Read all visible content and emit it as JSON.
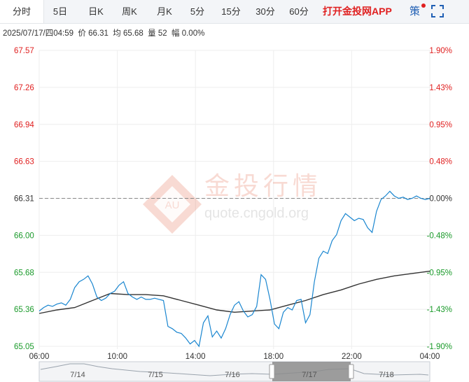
{
  "toolbar": {
    "tabs": [
      "分时",
      "5日",
      "日K",
      "周K",
      "月K",
      "5分",
      "15分",
      "30分",
      "60分"
    ],
    "active_tab": "分时",
    "promo_label": "打开金投网APP",
    "strategy_label": "策",
    "strategy_badge_color": "#e02020",
    "fullscreen_icon": "fullscreen-icon"
  },
  "info_bar": {
    "text": "2025/07/17/四04:59  价 66.31  均 65.68  量 52  幅 0.00%"
  },
  "watermark": {
    "brand": "金投行情",
    "url": "quote.cngold.org",
    "logo_text": "AU"
  },
  "colors": {
    "price_line": "#1a86d0",
    "avg_line": "#333333",
    "up": "#e02020",
    "down": "#1a9a2a",
    "grid": "#eeeeee"
  },
  "chart_data": {
    "type": "line",
    "y_ticks": [
      "67.57",
      "67.26",
      "66.94",
      "66.63",
      "66.31",
      "66.00",
      "65.68",
      "65.36",
      "65.05"
    ],
    "pct_ticks": [
      "1.90%",
      "1.43%",
      "0.95%",
      "0.48%",
      "0.00%",
      "-0.48%",
      "-0.95%",
      "-1.43%",
      "-1.90%"
    ],
    "x_ticks": [
      "06:00",
      "10:00",
      "14:00",
      "18:00",
      "22:00",
      "04:00"
    ],
    "ylim": [
      65.05,
      67.57
    ],
    "reference_price": 66.31,
    "session_hours": 22,
    "series": [
      {
        "kind": "price",
        "x": [
          0,
          0.25,
          0.5,
          0.75,
          1,
          1.25,
          1.5,
          1.75,
          2,
          2.25,
          2.5,
          2.75,
          3,
          3.25,
          3.5,
          3.75,
          4,
          4.25,
          4.5,
          4.75,
          5,
          5.25,
          5.5,
          5.75,
          6,
          6.25,
          6.5,
          6.75,
          7,
          7.25,
          7.5,
          7.75,
          8,
          8.25,
          8.5,
          8.75,
          9,
          9.25,
          9.5,
          9.75,
          10,
          10.25,
          10.5,
          10.75,
          11,
          11.25,
          11.5,
          11.75,
          12,
          12.25,
          12.5,
          12.75,
          13,
          13.25,
          13.5,
          13.75,
          14,
          14.25,
          14.5,
          14.75,
          15,
          15.25,
          15.5,
          15.75,
          16,
          16.25,
          16.5,
          16.75,
          17,
          17.25,
          17.5,
          17.75,
          18,
          18.25,
          18.5,
          18.75,
          19,
          19.25,
          19.5,
          19.75,
          20,
          20.25,
          20.5,
          20.75,
          21,
          21.25,
          21.5,
          21.75,
          22
        ],
        "y": [
          65.35,
          65.38,
          65.4,
          65.39,
          65.41,
          65.42,
          65.4,
          65.45,
          65.55,
          65.6,
          65.62,
          65.65,
          65.58,
          65.47,
          65.44,
          65.46,
          65.5,
          65.52,
          65.57,
          65.6,
          65.5,
          65.47,
          65.45,
          65.47,
          65.45,
          65.45,
          65.46,
          65.45,
          65.44,
          65.22,
          65.2,
          65.17,
          65.16,
          65.12,
          65.07,
          65.1,
          65.05,
          65.25,
          65.31,
          65.13,
          65.18,
          65.12,
          65.2,
          65.32,
          65.4,
          65.43,
          65.35,
          65.3,
          65.32,
          65.39,
          65.66,
          65.62,
          65.45,
          65.24,
          65.2,
          65.34,
          65.38,
          65.36,
          65.44,
          65.45,
          65.25,
          65.32,
          65.6,
          65.8,
          65.86,
          65.84,
          65.95,
          66.0,
          66.12,
          66.18,
          66.15,
          66.12,
          66.14,
          66.13,
          66.06,
          66.02,
          66.2,
          66.3,
          66.33,
          66.37,
          66.33,
          66.31,
          66.32,
          66.3,
          66.31,
          66.33,
          66.31,
          66.3,
          66.31
        ]
      },
      {
        "kind": "average",
        "x": [
          0,
          1,
          2,
          3,
          4,
          5,
          6,
          7,
          8,
          9,
          10,
          11,
          12,
          13,
          14,
          15,
          16,
          17,
          18,
          19,
          20,
          21,
          22
        ],
        "y": [
          65.33,
          65.36,
          65.38,
          65.44,
          65.5,
          65.49,
          65.49,
          65.48,
          65.44,
          65.4,
          65.36,
          65.34,
          65.35,
          65.36,
          65.4,
          65.44,
          65.49,
          65.53,
          65.58,
          65.62,
          65.65,
          65.67,
          65.69
        ]
      }
    ]
  },
  "navigator": {
    "dates": [
      "7/14",
      "7/15",
      "7/16",
      "7/17",
      "7/18"
    ]
  }
}
